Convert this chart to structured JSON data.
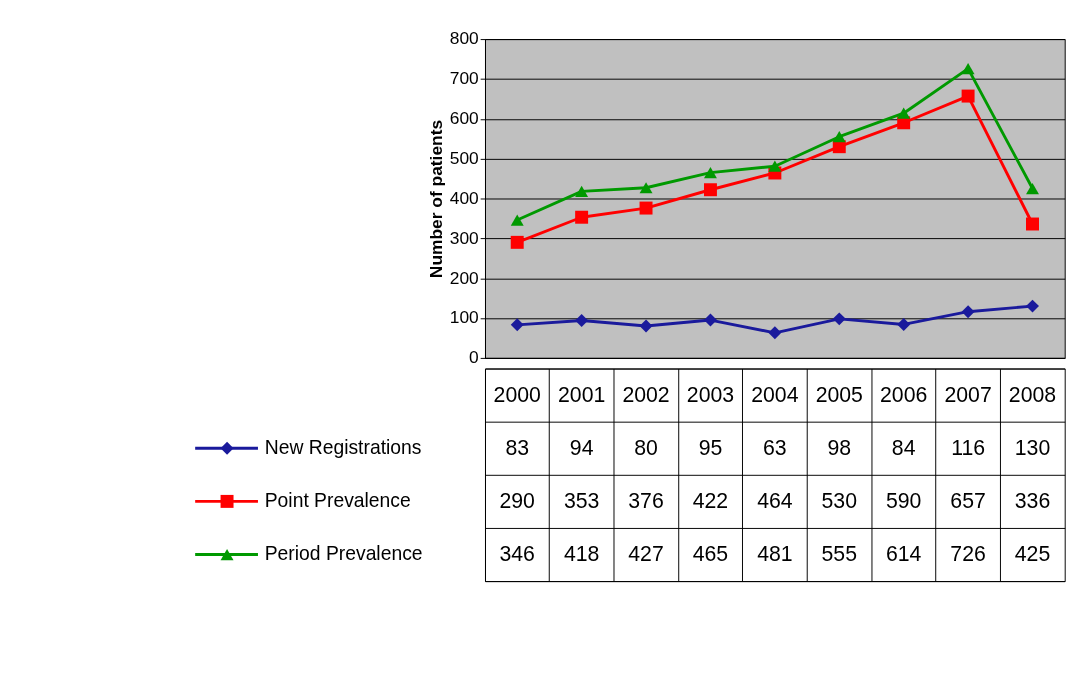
{
  "chart_data": {
    "type": "line",
    "ylabel": "Number of patients",
    "categories": [
      "2000",
      "2001",
      "2002",
      "2003",
      "2004",
      "2005",
      "2006",
      "2007",
      "2008"
    ],
    "series": [
      {
        "name": "New Registrations",
        "color": "#1a1a9c",
        "marker": "diamond",
        "values": [
          83,
          94,
          80,
          95,
          63,
          98,
          84,
          116,
          130
        ]
      },
      {
        "name": "Point Prevalence",
        "color": "#ff0000",
        "marker": "square",
        "values": [
          290,
          353,
          376,
          422,
          464,
          530,
          590,
          657,
          336
        ]
      },
      {
        "name": "Period Prevalence",
        "color": "#009900",
        "marker": "triangle",
        "values": [
          346,
          418,
          427,
          465,
          481,
          555,
          614,
          726,
          425
        ]
      }
    ],
    "ylim": [
      0,
      800
    ],
    "yticks": [
      0,
      100,
      200,
      300,
      400,
      500,
      600,
      700,
      800
    ],
    "grid": "y",
    "legend": "bottom",
    "data_labels": true
  }
}
